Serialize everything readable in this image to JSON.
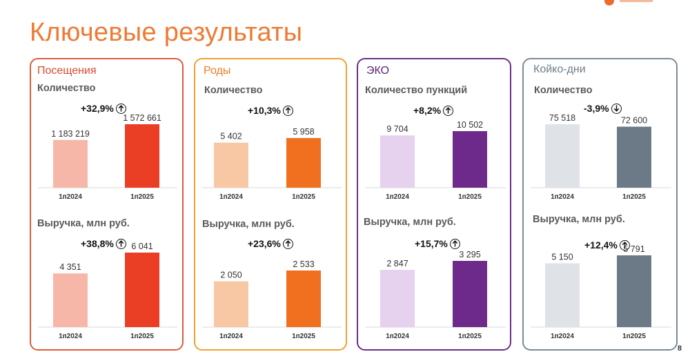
{
  "title": "Ключевые результаты",
  "page_number": "8",
  "colors": {
    "title": "#ee7a33",
    "visits": {
      "border": "#e05a3a",
      "title": "#d94a2e",
      "light": "#f7b7a8",
      "dark": "#ea3f25"
    },
    "births": {
      "border": "#f2a030",
      "title": "#ee7a22",
      "light": "#f8c8a4",
      "dark": "#f07020"
    },
    "eco": {
      "border": "#6b2d87",
      "title": "#5b2373",
      "light": "#e6d1ef",
      "dark": "#6e2a8a"
    },
    "beddays": {
      "border": "#7b8a96",
      "title": "#6b7c88",
      "light": "#dfe3e8",
      "dark": "#6b7a86"
    }
  },
  "cards": [
    {
      "key": "visits",
      "title": "Посещения",
      "top": {
        "label": "Количество",
        "change": "+32,9%",
        "direction": "up"
      },
      "bottom": {
        "label": "Выручка, млн руб.",
        "change": "+38,8%",
        "direction": "up"
      }
    },
    {
      "key": "births",
      "title": "Роды",
      "top": {
        "label": "Количество",
        "change": "+10,3%",
        "direction": "up"
      },
      "bottom": {
        "label": "Выручка, млн руб.",
        "change": "+23,6%",
        "direction": "up"
      }
    },
    {
      "key": "eco",
      "title": "ЭКО",
      "top": {
        "label": "Количество пункций",
        "change": "+8,2%",
        "direction": "up"
      },
      "bottom": {
        "label": "Выручка, млн руб.",
        "change": "+15,7%",
        "direction": "up"
      }
    },
    {
      "key": "beddays",
      "title": "Койко-дни",
      "top": {
        "label": "Количество",
        "change": "-3,9%",
        "direction": "down"
      },
      "bottom": {
        "label": "Выручка, млн руб.",
        "change": "+12,4%",
        "direction": "up"
      }
    }
  ],
  "chart_data": [
    {
      "type": "bar",
      "title": "Посещения — Количество",
      "categories": [
        "1п2024",
        "1п2025"
      ],
      "values": [
        1183219,
        1572661
      ],
      "labels": [
        "1 183 219",
        "1 572 661"
      ]
    },
    {
      "type": "bar",
      "title": "Посещения — Выручка, млн руб.",
      "categories": [
        "1п2024",
        "1п2025"
      ],
      "values": [
        4351,
        6041
      ],
      "labels": [
        "4 351",
        "6 041"
      ]
    },
    {
      "type": "bar",
      "title": "Роды — Количество",
      "categories": [
        "1п2024",
        "1п2025"
      ],
      "values": [
        5402,
        5958
      ],
      "labels": [
        "5 402",
        "5 958"
      ]
    },
    {
      "type": "bar",
      "title": "Роды — Выручка, млн руб.",
      "categories": [
        "1п2024",
        "1п2025"
      ],
      "values": [
        2050,
        2533
      ],
      "labels": [
        "2 050",
        "2 533"
      ]
    },
    {
      "type": "bar",
      "title": "ЭКО — Количество пункций",
      "categories": [
        "1п2024",
        "1п2025"
      ],
      "values": [
        9704,
        10502
      ],
      "labels": [
        "9 704",
        "10 502"
      ]
    },
    {
      "type": "bar",
      "title": "ЭКО — Выручка, млн руб.",
      "categories": [
        "1п2024",
        "1п2025"
      ],
      "values": [
        2847,
        3295
      ],
      "labels": [
        "2 847",
        "3 295"
      ]
    },
    {
      "type": "bar",
      "title": "Койко-дни — Количество",
      "categories": [
        "1п2024",
        "1п2025"
      ],
      "values": [
        75518,
        72600
      ],
      "labels": [
        "75 518",
        "72 600"
      ]
    },
    {
      "type": "bar",
      "title": "Койко-дни — Выручка, млн руб.",
      "categories": [
        "1п2024",
        "1п2025"
      ],
      "values": [
        5150,
        5791
      ],
      "labels": [
        "5 150",
        "5 791"
      ]
    }
  ]
}
